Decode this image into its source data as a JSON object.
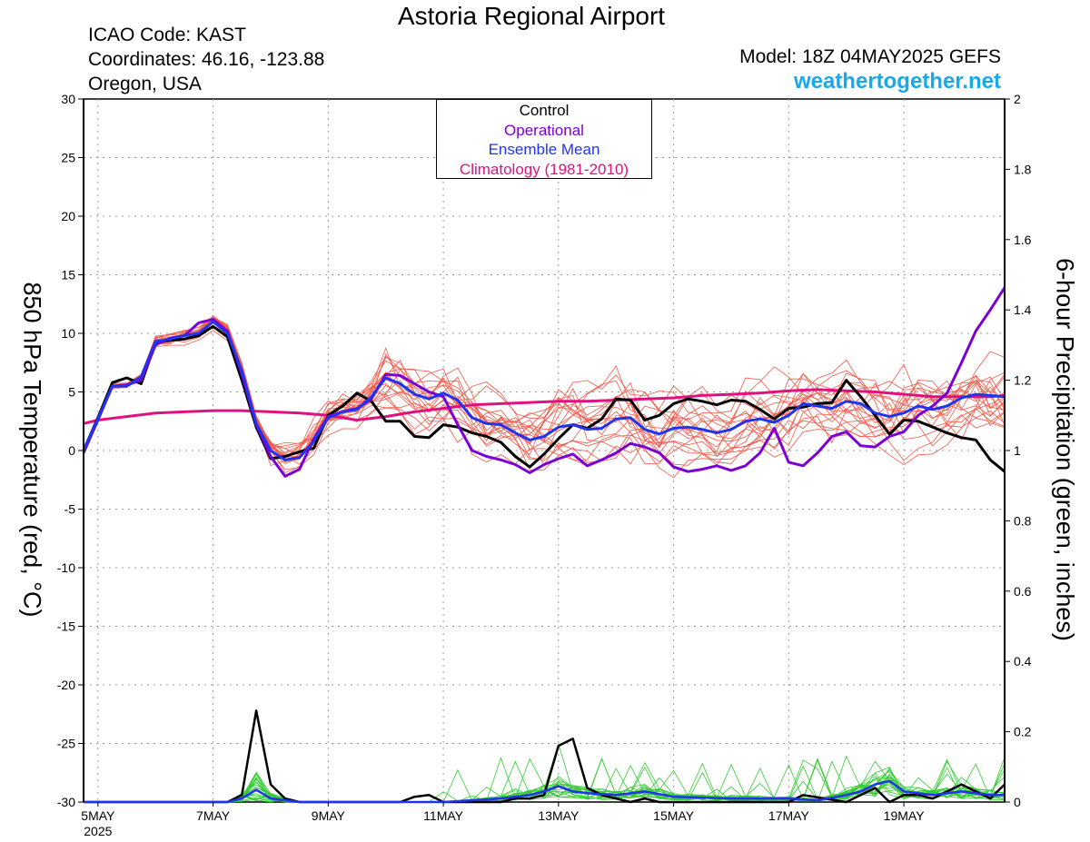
{
  "header": {
    "title": "Astoria Regional Airport",
    "icao": "ICAO Code: KAST",
    "coordinates": "Coordinates: 46.16, -123.88",
    "region": "Oregon, USA",
    "model": "Model: 18Z 04MAY2025 GEFS",
    "site": "weathertogether.net"
  },
  "legend": {
    "control": "Control",
    "operational": "Operational",
    "ensemble_mean": "Ensemble Mean",
    "climatology": "Climatology (1981-2010)"
  },
  "colors": {
    "control": "#000000",
    "operational": "#7b00d4",
    "ensemble_mean": "#2233ee",
    "climatology": "#e0117f",
    "members_temp": "#f05a4a",
    "members_precip": "#33cc33",
    "site": "#1aa7ec"
  },
  "chart_data": {
    "type": "line",
    "xlabel": "",
    "ylabel": "850 hPa Temperature (red, °C)",
    "ylabel_right": "6-hour Precipitation (green, inches)",
    "x_unit": "days since 5MAY2025 00Z",
    "xlim": [
      -0.25,
      15.75
    ],
    "ylim": [
      -30,
      30
    ],
    "y2lim": [
      0,
      2
    ],
    "grid": true,
    "xticks": [
      {
        "x": 0,
        "label": "5MAY",
        "sub": "2025"
      },
      {
        "x": 2,
        "label": "7MAY"
      },
      {
        "x": 4,
        "label": "9MAY"
      },
      {
        "x": 6,
        "label": "11MAY"
      },
      {
        "x": 8,
        "label": "13MAY"
      },
      {
        "x": 10,
        "label": "15MAY"
      },
      {
        "x": 12,
        "label": "17MAY"
      },
      {
        "x": 14,
        "label": "19MAY"
      }
    ],
    "yticks_left": [
      "30",
      "25",
      "20",
      "15",
      "10",
      "5",
      "0",
      "-5",
      "-10",
      "-15",
      "-20",
      "-25",
      "-30"
    ],
    "yticks_right": [
      "2",
      "1.8",
      "1.6",
      "1.4",
      "1.2",
      "1",
      "0.8",
      "0.6",
      "0.4",
      "0.2",
      "0"
    ],
    "series": [
      {
        "name": "Control",
        "axis": "left",
        "x": [
          -0.25,
          0,
          0.25,
          0.5,
          0.75,
          1,
          1.25,
          1.5,
          1.75,
          2,
          2.25,
          2.5,
          2.75,
          3,
          3.25,
          3.5,
          3.75,
          4,
          4.25,
          4.5,
          4.75,
          5,
          5.25,
          5.5,
          5.75,
          6,
          6.25,
          6.5,
          6.75,
          7,
          7.25,
          7.5,
          7.75,
          8,
          8.25,
          8.5,
          8.75,
          9,
          9.25,
          9.5,
          9.75,
          10,
          10.25,
          10.5,
          10.75,
          11,
          11.25,
          11.5,
          11.75,
          12,
          12.25,
          12.5,
          12.75,
          13,
          13.25,
          13.5,
          13.75,
          14,
          14.25,
          14.5,
          14.75,
          15,
          15.25,
          15.5,
          15.75
        ],
        "values": [
          0,
          2.8,
          5.8,
          6.2,
          5.7,
          9.2,
          9.4,
          9.5,
          9.8,
          10.6,
          9.7,
          6.0,
          2.0,
          -0.7,
          -0.5,
          -0.1,
          0.2,
          3.0,
          3.8,
          4.9,
          4.2,
          2.5,
          2.5,
          1.2,
          1.1,
          2.2,
          2.0,
          1.5,
          1.2,
          0.7,
          -0.5,
          -1.4,
          -0.3,
          1.0,
          2.2,
          1.9,
          2.7,
          4.4,
          4.3,
          2.6,
          3.0,
          4.0,
          4.4,
          4.2,
          3.9,
          4.3,
          4.2,
          3.5,
          2.7,
          3.6,
          3.7,
          4.0,
          4.1,
          6.0,
          4.6,
          3.0,
          1.4,
          2.6,
          2.5,
          2.0,
          1.5,
          1.1,
          0.9,
          -0.8,
          -1.8
        ]
      },
      {
        "name": "Operational",
        "axis": "left",
        "x": [
          -0.25,
          0,
          0.25,
          0.5,
          0.75,
          1,
          1.25,
          1.5,
          1.75,
          2,
          2.25,
          2.5,
          2.75,
          3,
          3.25,
          3.5,
          3.75,
          4,
          4.25,
          4.5,
          4.75,
          5,
          5.25,
          5.5,
          5.75,
          6,
          6.25,
          6.5,
          6.75,
          7,
          7.25,
          7.5,
          7.75,
          8,
          8.25,
          8.5,
          8.75,
          9,
          9.25,
          9.5,
          9.75,
          10,
          10.25,
          10.5,
          10.75,
          11,
          11.25,
          11.5,
          11.75,
          12,
          12.25,
          12.5,
          12.75,
          13,
          13.25,
          13.5,
          13.75,
          14,
          14.25,
          14.5,
          14.75,
          15,
          15.25,
          15.5,
          15.75
        ],
        "values": [
          -0.2,
          2.6,
          5.5,
          5.6,
          6.0,
          9.0,
          9.6,
          9.8,
          10.9,
          11.2,
          10.2,
          6.5,
          2.2,
          -0.5,
          -2.2,
          -1.6,
          1.0,
          2.9,
          3.3,
          3.6,
          4.4,
          6.5,
          6.4,
          5.7,
          5.0,
          4.6,
          2.2,
          0,
          -0.5,
          -0.8,
          -1.2,
          -1.9,
          -1.2,
          -0.7,
          -0.3,
          -1.3,
          -0.8,
          -0.2,
          0.6,
          0.3,
          -0.2,
          -1.4,
          -1.8,
          -1.6,
          -1.3,
          -1.7,
          -1.3,
          -0.2,
          1.9,
          -1.0,
          -1.3,
          -0.2,
          1.2,
          1.6,
          0.4,
          0.3,
          1.2,
          1.6,
          3.0,
          3.8,
          4.9,
          7.5,
          10.2,
          12.0,
          13.9
        ]
      },
      {
        "name": "Ensemble Mean",
        "axis": "left",
        "x": [
          -0.25,
          0,
          0.25,
          0.5,
          0.75,
          1,
          1.25,
          1.5,
          1.75,
          2,
          2.25,
          2.5,
          2.75,
          3,
          3.25,
          3.5,
          3.75,
          4,
          4.25,
          4.5,
          4.75,
          5,
          5.25,
          5.5,
          5.75,
          6,
          6.25,
          6.5,
          6.75,
          7,
          7.25,
          7.5,
          7.75,
          8,
          8.25,
          8.5,
          8.75,
          9,
          9.25,
          9.5,
          9.75,
          10,
          10.25,
          10.5,
          10.75,
          11,
          11.25,
          11.5,
          11.75,
          12,
          12.25,
          12.5,
          12.75,
          13,
          13.25,
          13.5,
          13.75,
          14,
          14.25,
          14.5,
          14.75,
          15,
          15.25,
          15.5,
          15.75
        ],
        "values": [
          0,
          2.7,
          5.5,
          5.5,
          6.3,
          9.3,
          9.5,
          9.8,
          10.0,
          11.0,
          10.0,
          6.8,
          2.3,
          0,
          -0.8,
          -0.6,
          0.8,
          2.8,
          3.3,
          3.5,
          4.6,
          6.2,
          5.7,
          4.8,
          4.4,
          4.9,
          4.3,
          2.8,
          2.3,
          2.2,
          1.5,
          0.9,
          1.2,
          2.0,
          2.2,
          1.8,
          1.9,
          2.7,
          2.8,
          1.8,
          1.4,
          1.9,
          2.0,
          1.8,
          1.5,
          1.8,
          2.5,
          2.7,
          2.4,
          3.0,
          4.0,
          3.8,
          3.6,
          4.2,
          4.0,
          3.2,
          2.9,
          3.2,
          3.8,
          3.5,
          3.8,
          4.5,
          4.8,
          4.7,
          4.6
        ]
      },
      {
        "name": "Climatology (1981-2010)",
        "axis": "left",
        "x": [
          -0.25,
          0,
          0.5,
          1,
          1.5,
          2,
          2.5,
          3,
          3.5,
          4,
          4.5,
          5,
          5.5,
          6,
          6.5,
          7,
          7.5,
          8,
          8.5,
          9,
          9.5,
          10,
          10.5,
          11,
          11.5,
          12,
          12.5,
          13,
          13.5,
          14,
          14.5,
          15,
          15.5,
          15.75
        ],
        "values": [
          2.3,
          2.6,
          2.9,
          3.2,
          3.3,
          3.4,
          3.4,
          3.3,
          3.2,
          3.0,
          2.6,
          2.9,
          3.3,
          3.6,
          3.9,
          4.0,
          4.1,
          4.2,
          4.2,
          4.3,
          4.4,
          4.5,
          4.7,
          4.8,
          4.9,
          5.1,
          5.2,
          5.1,
          5.0,
          4.8,
          4.6,
          4.6,
          4.6,
          4.7
        ]
      },
      {
        "name": "Control precipitation",
        "axis": "right",
        "x": [
          -0.25,
          2.25,
          2.5,
          2.75,
          3,
          3.25,
          3.5,
          5.25,
          5.5,
          5.75,
          6,
          7,
          7.25,
          7.5,
          7.75,
          8,
          8.25,
          8.5,
          8.75,
          9,
          9.25,
          9.5,
          9.75,
          10,
          11,
          12,
          12.25,
          13,
          13.25,
          13.5,
          13.75,
          14,
          14.25,
          14.5,
          14.75,
          15,
          15.25,
          15.5,
          15.75
        ],
        "values": [
          0,
          0,
          0.02,
          0.26,
          0.05,
          0.01,
          0,
          0,
          0.015,
          0.02,
          0,
          0,
          0.01,
          0.01,
          0.02,
          0.16,
          0.18,
          0.04,
          0.02,
          0.01,
          0,
          0.01,
          0,
          0,
          0,
          0,
          0.02,
          0,
          0.02,
          0.04,
          0,
          0.02,
          0.02,
          0.01,
          0.03,
          0.05,
          0.03,
          0.01,
          0.05
        ]
      },
      {
        "name": "Ensemble mean precipitation",
        "axis": "right",
        "x": [
          -0.25,
          2.25,
          2.5,
          2.75,
          3,
          3.5,
          6,
          6.5,
          7,
          7.5,
          7.75,
          8,
          8.25,
          8.5,
          9,
          9.5,
          10,
          11,
          12,
          12.5,
          13,
          13.25,
          13.5,
          13.75,
          14,
          14.5,
          15,
          15.5,
          15.75
        ],
        "values": [
          0,
          0,
          0.01,
          0.035,
          0.01,
          0,
          0,
          0.005,
          0.01,
          0.02,
          0.03,
          0.045,
          0.03,
          0.025,
          0.02,
          0.03,
          0.015,
          0.01,
          0.01,
          0.005,
          0.02,
          0.03,
          0.05,
          0.06,
          0.03,
          0.02,
          0.03,
          0.02,
          0.02
        ]
      }
    ]
  }
}
